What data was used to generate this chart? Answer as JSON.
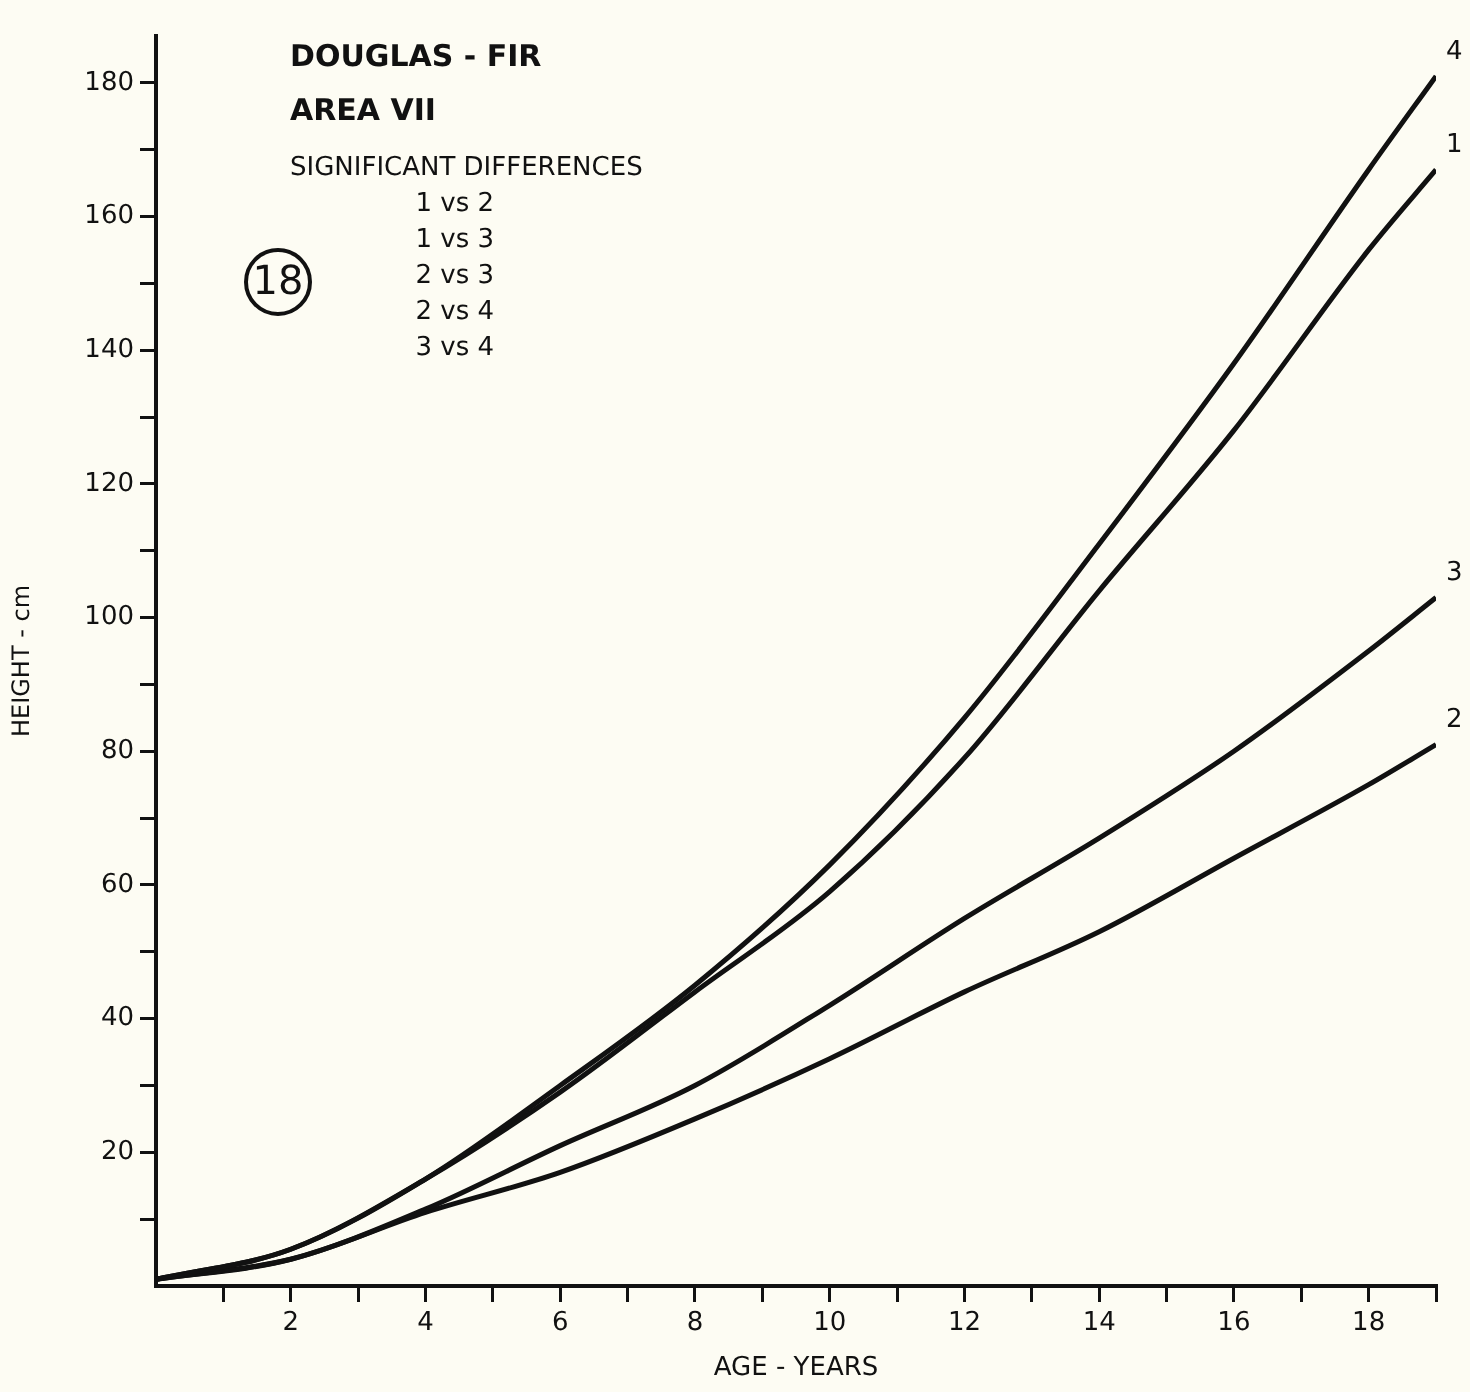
{
  "chart_data": {
    "type": "line",
    "title": "DOUGLAS - FIR",
    "subtitle": "AREA VII",
    "xlabel": "AGE - YEARS",
    "ylabel": "HEIGHT - cm",
    "annotations": [
      "18",
      "SIGNIFICANT DIFFERENCES",
      "1 vs 2",
      "1 vs 3",
      "2 vs 3",
      "2 vs 4",
      "3 vs 4"
    ],
    "x": [
      0,
      2,
      4,
      6,
      8,
      10,
      12,
      14,
      16,
      18,
      19
    ],
    "series": [
      {
        "name": "4",
        "color": "#111111",
        "values": [
          1,
          5.5,
          16,
          30,
          45,
          63,
          85,
          111,
          138,
          167,
          181
        ]
      },
      {
        "name": "1",
        "color": "#111111",
        "values": [
          1,
          5.5,
          16,
          29,
          44,
          59,
          79,
          104,
          128,
          155,
          167
        ]
      },
      {
        "name": "3",
        "color": "#111111",
        "values": [
          1,
          4,
          11.5,
          21,
          30,
          42,
          55,
          67,
          80,
          95,
          103
        ]
      },
      {
        "name": "2",
        "color": "#111111",
        "values": [
          1,
          4,
          11,
          17,
          25,
          34,
          44,
          53,
          64,
          75,
          81
        ]
      }
    ],
    "xlim": [
      0,
      19
    ],
    "xticks": [
      {
        "value": 1,
        "label": null
      },
      2,
      {
        "value": 3,
        "label": null
      },
      4,
      {
        "value": 5,
        "label": null
      },
      6,
      {
        "value": 7,
        "label": null
      },
      8,
      {
        "value": 9,
        "label": null
      },
      10,
      {
        "value": 11,
        "label": null
      },
      12,
      {
        "value": 13,
        "label": null
      },
      14,
      {
        "value": 15,
        "label": null
      },
      16,
      {
        "value": 17,
        "label": null
      },
      18,
      {
        "value": 19,
        "label": null
      }
    ],
    "ylim": [
      0,
      187
    ],
    "yticks": [
      {
        "value": 10,
        "label": null
      },
      20,
      {
        "value": 30,
        "label": null
      },
      40,
      {
        "value": 50,
        "label": null
      },
      60,
      {
        "value": 70,
        "label": null
      },
      80,
      {
        "value": 90,
        "label": null
      },
      100,
      {
        "value": 110,
        "label": null
      },
      120,
      {
        "value": 130,
        "label": null
      },
      140,
      {
        "value": 150,
        "label": null
      },
      160,
      {
        "value": 170,
        "label": null
      },
      180
    ],
    "grid": false,
    "legend": false,
    "marker": "none",
    "line_style": "solid"
  }
}
